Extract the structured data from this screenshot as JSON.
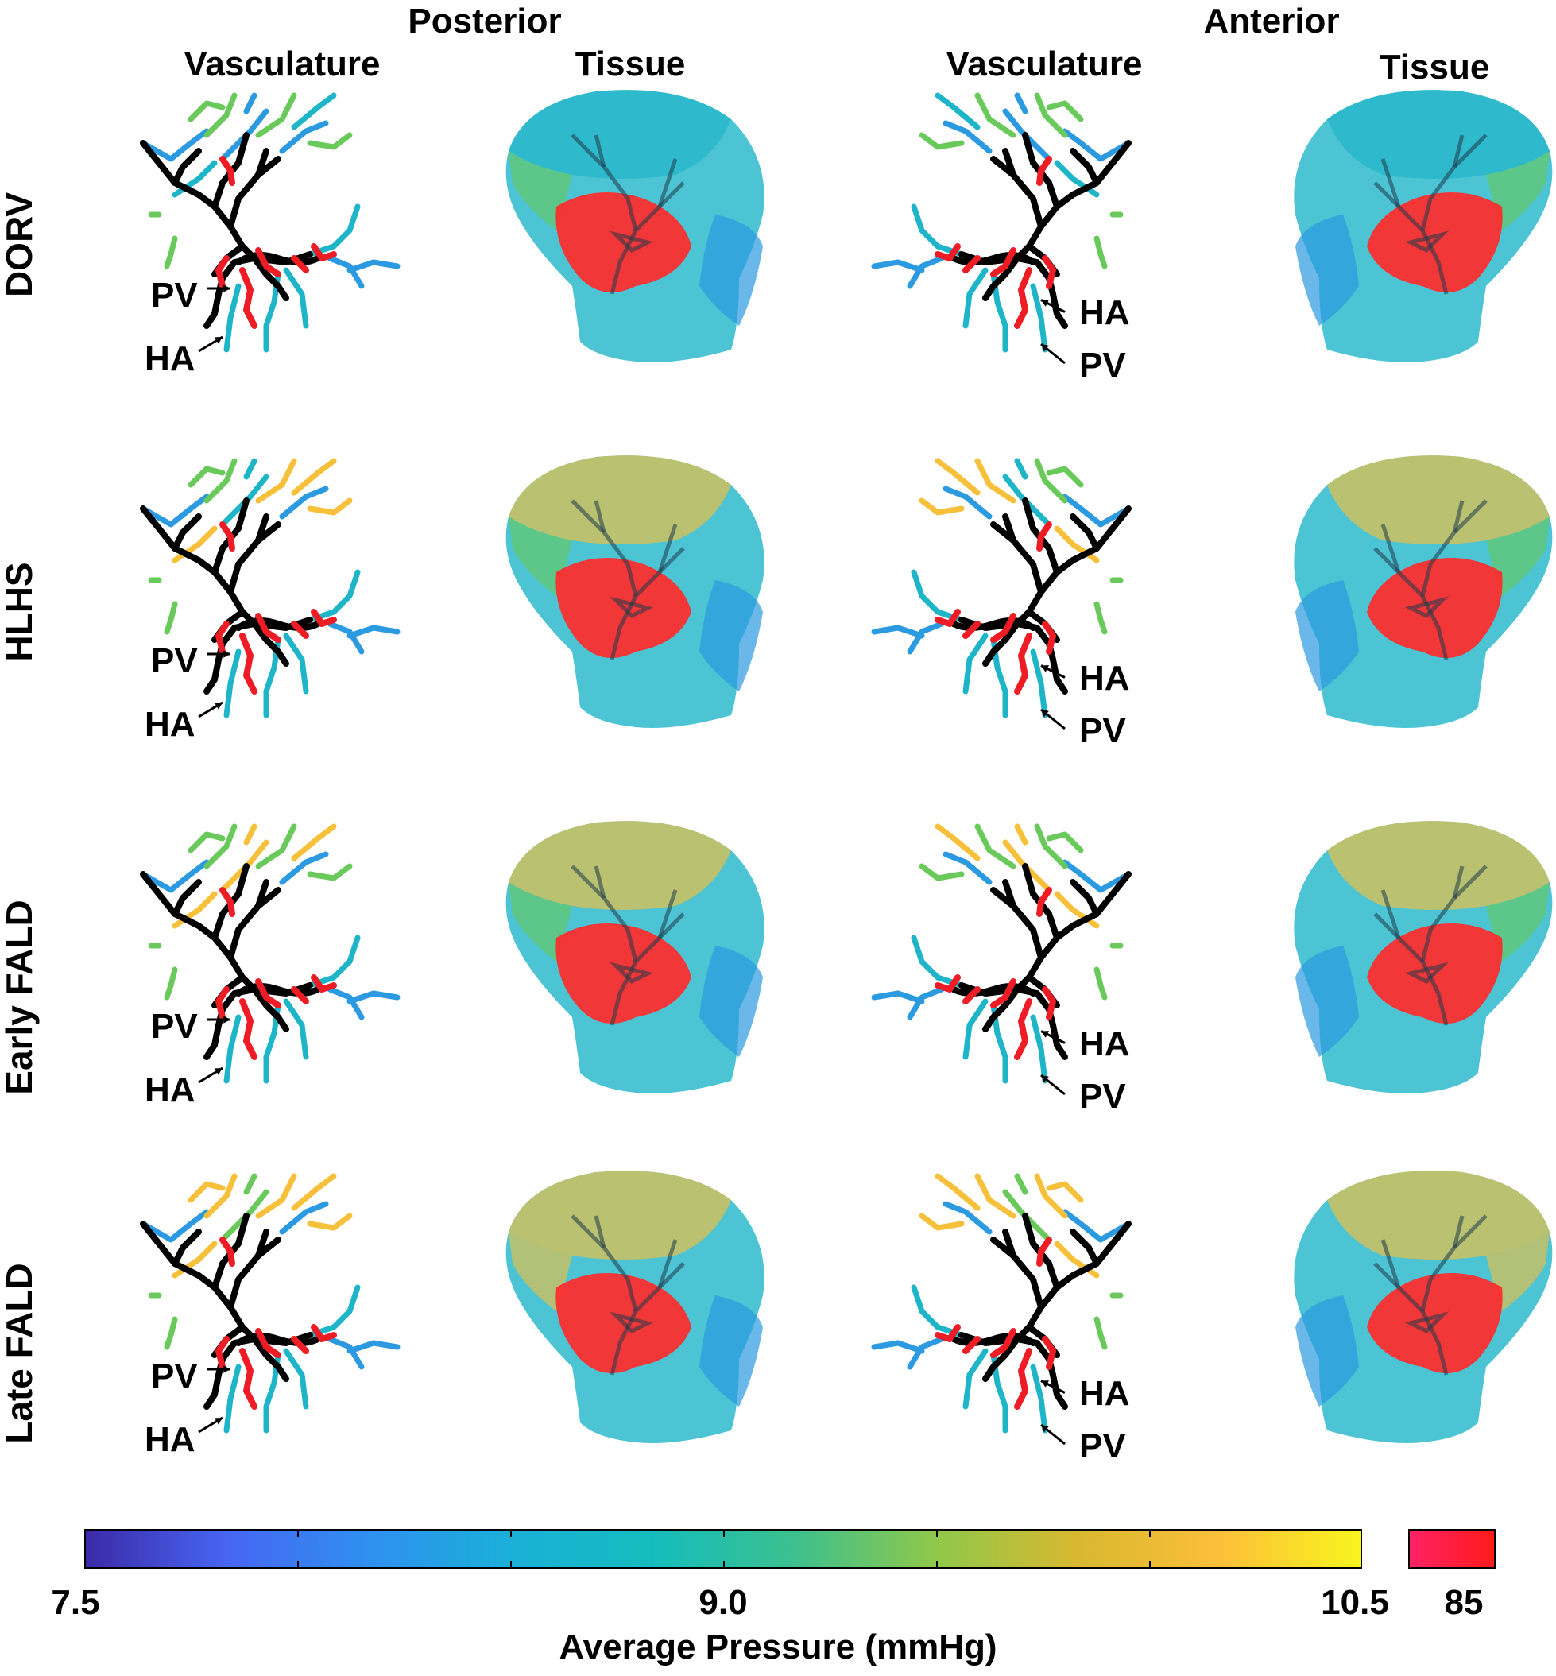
{
  "views": {
    "posterior": "Posterior",
    "anterior": "Anterior"
  },
  "columns": [
    "Vasculature",
    "Tissue",
    "Vasculature",
    "Tissue"
  ],
  "rows": [
    "DORV",
    "HLHS",
    "Early FALD",
    "Late FALD"
  ],
  "annotations": {
    "pv": "PV",
    "ha": "HA"
  },
  "colorbar": {
    "title": "Average Pressure (mmHg)",
    "min_label": "7.5",
    "mid_label": "9.0",
    "max_label": "10.5",
    "red_label": "85",
    "gradient_colors": [
      "#3b2aa8",
      "#4766f2",
      "#2f90f0",
      "#1ab0d8",
      "#14bdbd",
      "#3cc08e",
      "#8fc84a",
      "#d8b830",
      "#fcbf3a",
      "#f8f41e"
    ],
    "red_colors": [
      "#ff2266",
      "#ff1a1a"
    ]
  },
  "palette": {
    "vessel_core": "#000000",
    "vessel_high": "#ee1c24",
    "blue": "#2b9ae0",
    "cyan": "#1fb5c8",
    "green": "#69c95a",
    "yellow": "#f6c03a",
    "tissue_red": "#ff2a2a"
  }
}
